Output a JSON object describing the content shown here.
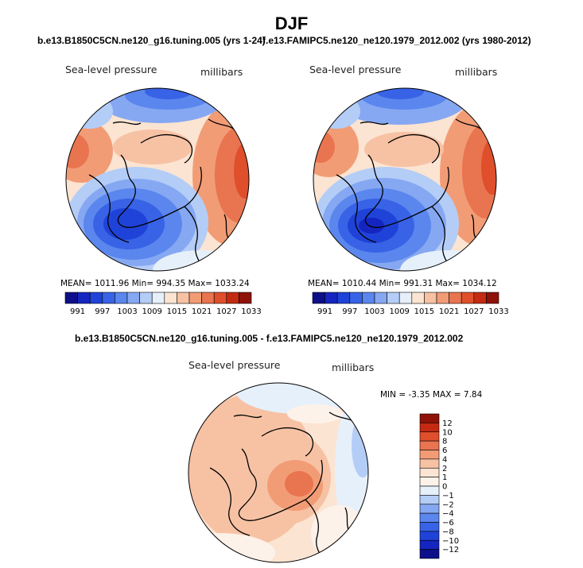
{
  "page": {
    "title": "DJF",
    "left_subtitle": "b.e13.B1850C5CN.ne120_g16.tuning.005 (yrs 1-24)",
    "right_subtitle": "f.e13.FAMIPC5.ne120_ne120.1979_2012.002 (yrs 1980-2012)",
    "diff_subtitle": "b.e13.B1850C5CN.ne120_g16.tuning.005 - f.e13.FAMIPC5.ne120_ne120.1979_2012.002"
  },
  "panels": {
    "left": {
      "variable": "Sea-level pressure",
      "units": "millibars",
      "stats": "MEAN= 1011.96   Min= 994.35   Max= 1033.24"
    },
    "right": {
      "variable": "Sea-level pressure",
      "units": "millibars",
      "stats": "MEAN= 1010.44   Min= 991.31   Max= 1034.12"
    },
    "diff": {
      "variable": "Sea-level pressure",
      "units": "millibars",
      "stats": "MIN =   -3.35  MAX =    7.84"
    }
  },
  "chart_data": [
    {
      "type": "heatmap",
      "subtype": "polar-stereographic contour map",
      "title": "b.e13.B1850C5CN.ne120_g16.tuning.005 (yrs 1-24)",
      "variable": "Sea-level pressure",
      "units": "millibars",
      "mean": 1011.96,
      "min": 994.35,
      "max": 1033.24,
      "colorbar": {
        "orientation": "horizontal",
        "levels": [
          991,
          994,
          997,
          1000,
          1003,
          1006,
          1009,
          1012,
          1015,
          1018,
          1021,
          1024,
          1027,
          1030,
          1033
        ],
        "tick_labels": [
          "991",
          "997",
          "1003",
          "1009",
          "1015",
          "1021",
          "1027",
          "1033"
        ],
        "colors": [
          "#0d0f8a",
          "#1525c0",
          "#1f43d8",
          "#3863e6",
          "#5a86ee",
          "#86a8f2",
          "#b4cdf7",
          "#e6f0fb",
          "#fbe4d2",
          "#f7c2a4",
          "#f29c76",
          "#e97450",
          "#df4f2c",
          "#c42a12",
          "#8f1208"
        ]
      }
    },
    {
      "type": "heatmap",
      "subtype": "polar-stereographic contour map",
      "title": "f.e13.FAMIPC5.ne120_ne120.1979_2012.002 (yrs 1980-2012)",
      "variable": "Sea-level pressure",
      "units": "millibars",
      "mean": 1010.44,
      "min": 991.31,
      "max": 1034.12,
      "colorbar": {
        "orientation": "horizontal",
        "levels": [
          991,
          994,
          997,
          1000,
          1003,
          1006,
          1009,
          1012,
          1015,
          1018,
          1021,
          1024,
          1027,
          1030,
          1033
        ],
        "tick_labels": [
          "991",
          "997",
          "1003",
          "1009",
          "1015",
          "1021",
          "1027",
          "1033"
        ],
        "colors": [
          "#0d0f8a",
          "#1525c0",
          "#1f43d8",
          "#3863e6",
          "#5a86ee",
          "#86a8f2",
          "#b4cdf7",
          "#e6f0fb",
          "#fbe4d2",
          "#f7c2a4",
          "#f29c76",
          "#e97450",
          "#df4f2c",
          "#c42a12",
          "#8f1208"
        ]
      }
    },
    {
      "type": "heatmap",
      "subtype": "polar-stereographic difference map",
      "title": "b.e13.B1850C5CN.ne120_g16.tuning.005 - f.e13.FAMIPC5.ne120_ne120.1979_2012.002",
      "variable": "Sea-level pressure",
      "units": "millibars",
      "min": -3.35,
      "max": 7.84,
      "colorbar": {
        "orientation": "vertical",
        "levels": [
          -12,
          -10,
          -8,
          -6,
          -4,
          -2,
          -1,
          0,
          1,
          2,
          4,
          6,
          8,
          10,
          12
        ],
        "tick_labels": [
          "12",
          "10",
          "8",
          "6",
          "4",
          "2",
          "1",
          "0",
          "−1",
          "−2",
          "−4",
          "−6",
          "−8",
          "−10",
          "−12"
        ],
        "colors": [
          "#8f1208",
          "#c42a12",
          "#df4f2c",
          "#e97450",
          "#f29c76",
          "#f7c2a4",
          "#fbe4d2",
          "#fdf2ea",
          "#e6f0fb",
          "#b4cdf7",
          "#86a8f2",
          "#5a86ee",
          "#3863e6",
          "#1f43d8",
          "#1525c0",
          "#0d0f8a"
        ]
      }
    }
  ]
}
